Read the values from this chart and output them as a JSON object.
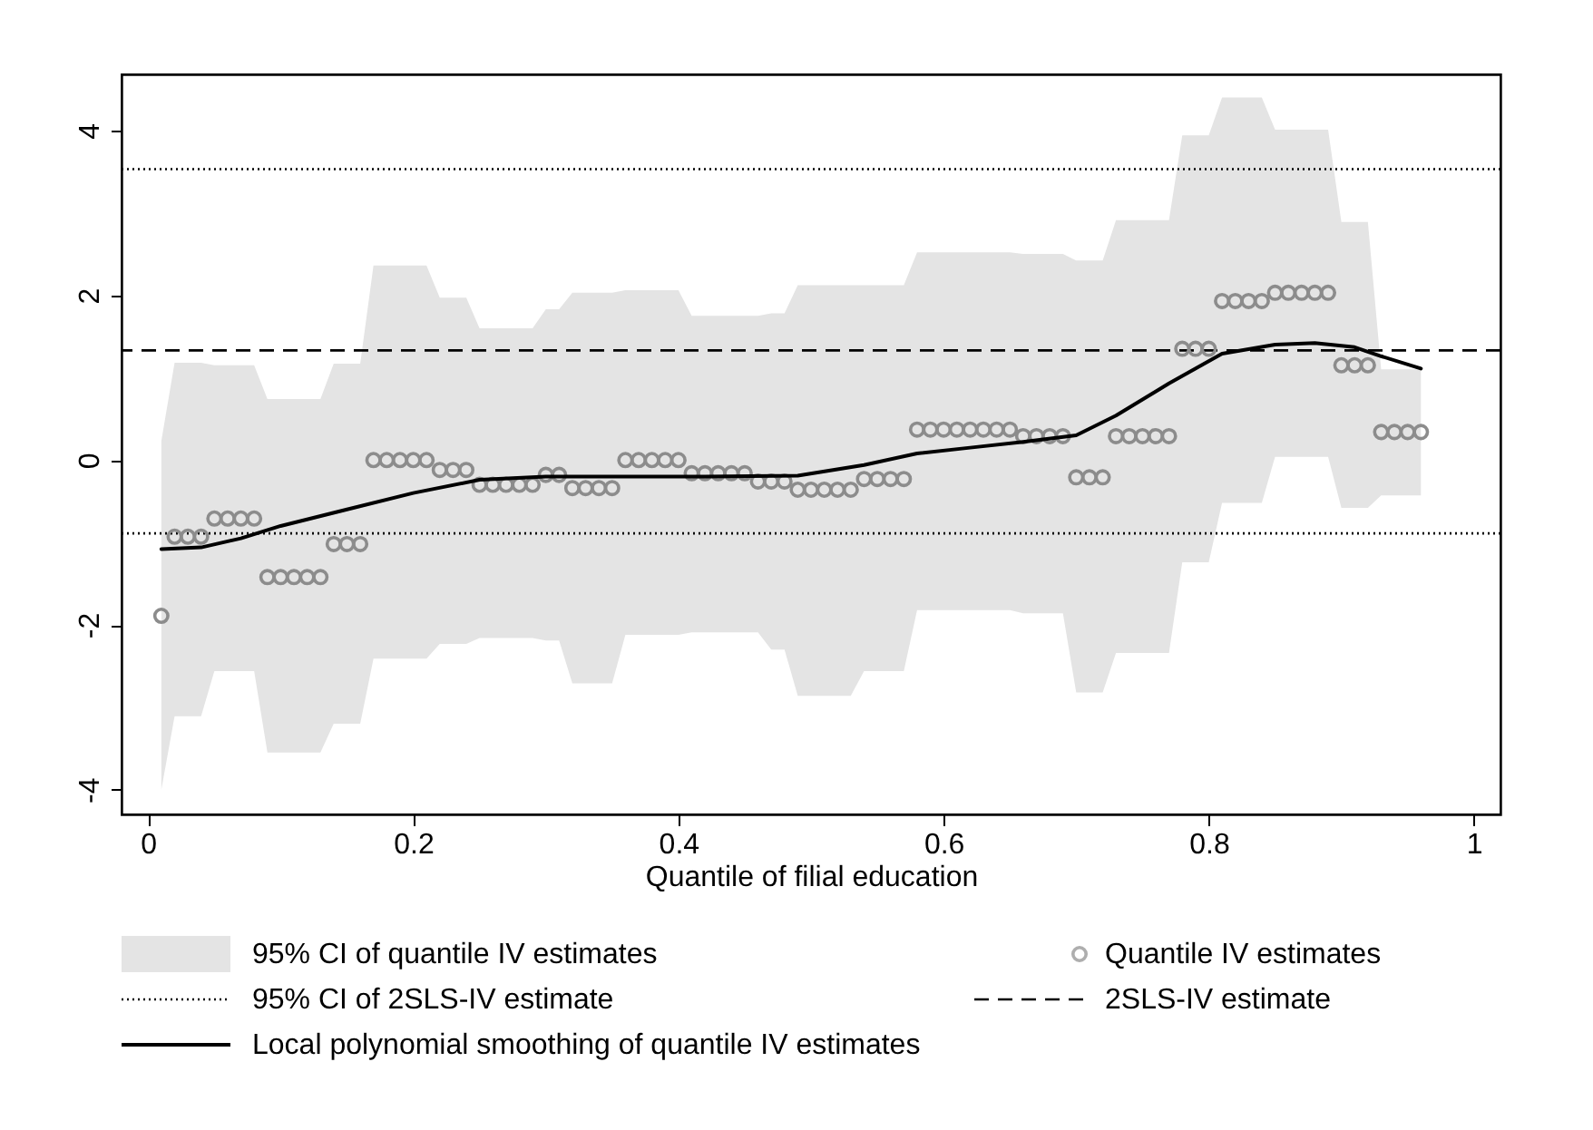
{
  "chart_data": {
    "type": "scatter",
    "xlabel": "Quantile of filial education",
    "xlim": [
      -0.02,
      1.02
    ],
    "ylim": [
      -4.3,
      4.68
    ],
    "xticks": [
      0,
      0.2,
      0.4,
      0.6,
      0.8,
      1
    ],
    "yticks": [
      -4,
      -2,
      0,
      2,
      4
    ],
    "grid": false,
    "legend": "bottom",
    "annotations": [
      "95% CI of quantile IV estimates"
    ],
    "series": [
      {
        "name": "Quantile IV estimates",
        "color": "#8c8c8c",
        "marker": "circle",
        "x": [
          0.01,
          0.02,
          0.03,
          0.04,
          0.05,
          0.06,
          0.07,
          0.08,
          0.09,
          0.1,
          0.11,
          0.12,
          0.13,
          0.14,
          0.15,
          0.16,
          0.17,
          0.18,
          0.19,
          0.2,
          0.21,
          0.22,
          0.23,
          0.24,
          0.25,
          0.26,
          0.27,
          0.28,
          0.29,
          0.3,
          0.31,
          0.32,
          0.33,
          0.34,
          0.35,
          0.36,
          0.37,
          0.38,
          0.39,
          0.4,
          0.41,
          0.42,
          0.43,
          0.44,
          0.45,
          0.46,
          0.47,
          0.48,
          0.49,
          0.5,
          0.51,
          0.52,
          0.53,
          0.54,
          0.55,
          0.56,
          0.57,
          0.58,
          0.59,
          0.6,
          0.61,
          0.62,
          0.63,
          0.64,
          0.65,
          0.66,
          0.67,
          0.68,
          0.69,
          0.7,
          0.71,
          0.72,
          0.73,
          0.74,
          0.75,
          0.76,
          0.77,
          0.78,
          0.79,
          0.8,
          0.81,
          0.82,
          0.83,
          0.84,
          0.85,
          0.86,
          0.87,
          0.88,
          0.89,
          0.9,
          0.91,
          0.92,
          0.93,
          0.94,
          0.95,
          0.96
        ],
        "values": [
          -1.89,
          -0.93,
          -0.93,
          -0.93,
          -0.71,
          -0.71,
          -0.71,
          -0.71,
          -1.42,
          -1.42,
          -1.42,
          -1.42,
          -1.42,
          -1.02,
          -1.02,
          -1.02,
          0,
          0,
          0,
          0,
          0,
          -0.12,
          -0.12,
          -0.12,
          -0.3,
          -0.3,
          -0.3,
          -0.3,
          -0.3,
          -0.18,
          -0.18,
          -0.34,
          -0.34,
          -0.34,
          -0.34,
          0,
          0,
          0,
          0,
          0,
          -0.16,
          -0.16,
          -0.16,
          -0.16,
          -0.16,
          -0.26,
          -0.26,
          -0.26,
          -0.36,
          -0.36,
          -0.36,
          -0.36,
          -0.36,
          -0.23,
          -0.23,
          -0.23,
          -0.23,
          0.37,
          0.37,
          0.37,
          0.37,
          0.37,
          0.37,
          0.37,
          0.37,
          0.29,
          0.29,
          0.29,
          0.29,
          -0.21,
          -0.21,
          -0.21,
          0.29,
          0.29,
          0.29,
          0.29,
          0.29,
          1.35,
          1.35,
          1.35,
          1.93,
          1.93,
          1.93,
          1.93,
          2.03,
          2.03,
          2.03,
          2.03,
          2.03,
          1.15,
          1.15,
          1.15,
          0.34,
          0.34,
          0.34,
          0.34
        ],
        "lower": [
          -4.0,
          -3.11,
          -3.11,
          -3.11,
          -2.56,
          -2.56,
          -2.56,
          -2.56,
          -3.55,
          -3.55,
          -3.55,
          -3.55,
          -3.55,
          -3.2,
          -3.2,
          -3.2,
          -2.41,
          -2.41,
          -2.41,
          -2.41,
          -2.41,
          -2.23,
          -2.23,
          -2.23,
          -2.16,
          -2.16,
          -2.16,
          -2.16,
          -2.16,
          -2.19,
          -2.19,
          -2.71,
          -2.71,
          -2.71,
          -2.71,
          -2.12,
          -2.12,
          -2.12,
          -2.12,
          -2.12,
          -2.09,
          -2.09,
          -2.09,
          -2.09,
          -2.09,
          -2.09,
          -2.3,
          -2.3,
          -2.86,
          -2.86,
          -2.86,
          -2.86,
          -2.86,
          -2.56,
          -2.56,
          -2.56,
          -2.56,
          -1.82,
          -1.82,
          -1.82,
          -1.82,
          -1.82,
          -1.82,
          -1.82,
          -1.82,
          -1.86,
          -1.86,
          -1.86,
          -1.86,
          -2.82,
          -2.82,
          -2.82,
          -2.34,
          -2.34,
          -2.34,
          -2.34,
          -2.34,
          -1.24,
          -1.24,
          -1.24,
          -0.52,
          -0.52,
          -0.52,
          -0.52,
          0.04,
          0.04,
          0.04,
          0.04,
          0.04,
          -0.58,
          -0.58,
          -0.58,
          -0.43,
          -0.43,
          -0.43,
          -0.43
        ],
        "upper": [
          0.23,
          1.18,
          1.18,
          1.18,
          1.15,
          1.15,
          1.15,
          1.15,
          0.74,
          0.74,
          0.74,
          0.74,
          0.74,
          1.17,
          1.17,
          1.17,
          2.36,
          2.36,
          2.36,
          2.36,
          2.36,
          1.97,
          1.97,
          1.97,
          1.6,
          1.6,
          1.6,
          1.6,
          1.6,
          1.83,
          1.83,
          2.03,
          2.03,
          2.03,
          2.03,
          2.06,
          2.06,
          2.06,
          2.06,
          2.06,
          1.75,
          1.75,
          1.75,
          1.75,
          1.75,
          1.75,
          1.78,
          1.78,
          2.12,
          2.12,
          2.12,
          2.12,
          2.12,
          2.12,
          2.12,
          2.12,
          2.12,
          2.52,
          2.52,
          2.52,
          2.52,
          2.52,
          2.52,
          2.52,
          2.52,
          2.5,
          2.5,
          2.5,
          2.5,
          2.42,
          2.42,
          2.42,
          2.91,
          2.91,
          2.91,
          2.91,
          2.91,
          3.94,
          3.94,
          3.94,
          4.4,
          4.4,
          4.4,
          4.4,
          4.01,
          4.01,
          4.01,
          4.01,
          4.01,
          2.89,
          2.89,
          2.89,
          1.1,
          1.1,
          1.1,
          1.1
        ]
      },
      {
        "name": "Local polynomial smoothing of quantile IV estimates",
        "type": "line",
        "color": "#000000",
        "line_style": "solid",
        "x": [
          0.01,
          0.04,
          0.07,
          0.1,
          0.15,
          0.2,
          0.25,
          0.3,
          0.35,
          0.42,
          0.49,
          0.54,
          0.58,
          0.62,
          0.66,
          0.7,
          0.73,
          0.77,
          0.81,
          0.85,
          0.88,
          0.91,
          0.93,
          0.96
        ],
        "values": [
          -1.08,
          -1.06,
          -0.95,
          -0.8,
          -0.6,
          -0.4,
          -0.24,
          -0.2,
          -0.2,
          -0.2,
          -0.19,
          -0.06,
          0.08,
          0.15,
          0.22,
          0.3,
          0.54,
          0.93,
          1.29,
          1.4,
          1.42,
          1.37,
          1.26,
          1.11
        ]
      }
    ],
    "ref_lines": [
      {
        "axis": "y",
        "value": 3.53,
        "label": "95% CI of 2SLS-IV estimate",
        "color": "#000000",
        "line_style": "dotted"
      },
      {
        "axis": "y",
        "value": 1.33,
        "label": "2SLS-IV estimate",
        "color": "#000000",
        "line_style": "dashed"
      },
      {
        "axis": "y",
        "value": -0.89,
        "label": null,
        "color": "#000000",
        "line_style": "dotted"
      }
    ]
  }
}
